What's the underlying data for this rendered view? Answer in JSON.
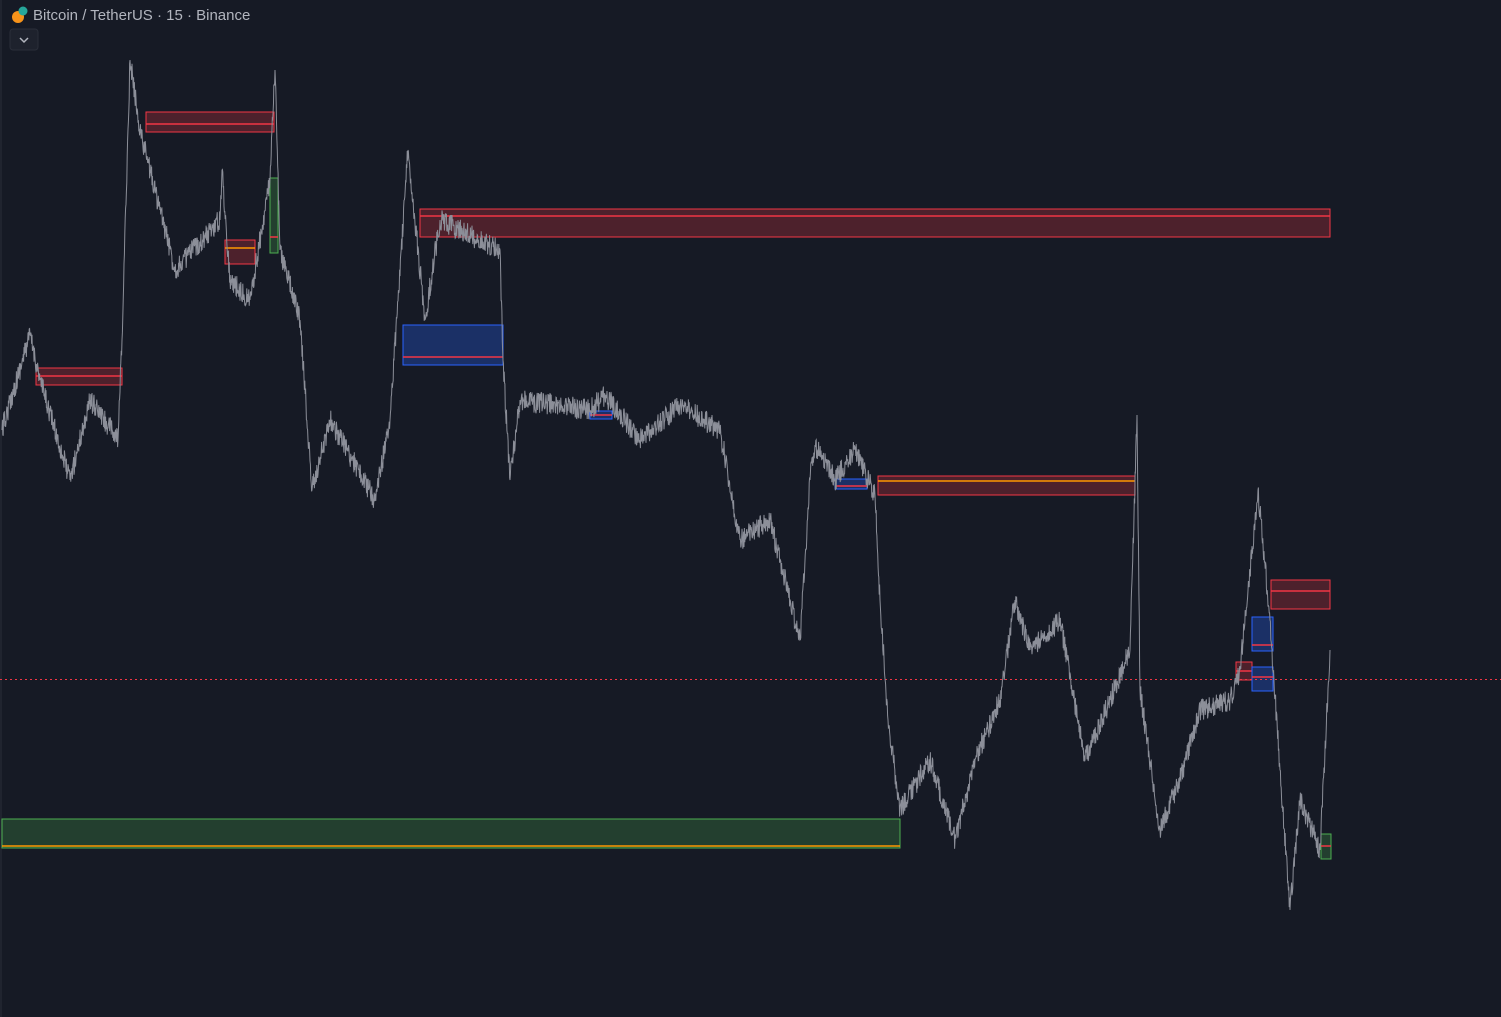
{
  "header": {
    "title": "Bitcoin / TetherUS · 15 · Binance"
  }
}
